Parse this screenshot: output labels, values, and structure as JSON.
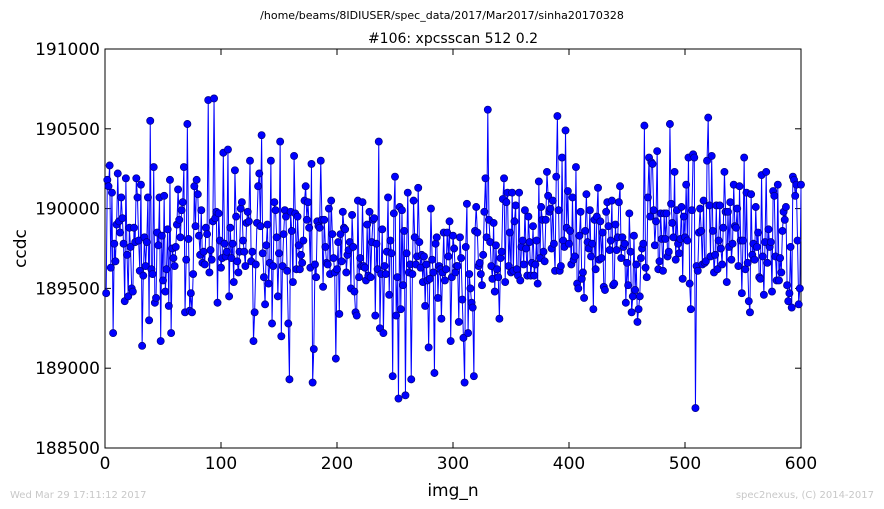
{
  "header": {
    "path": "/home/beams/8IDIUSER/spec_data/2017/Mar2017/sinha20170328",
    "title": "#106: xpcsscan 512 0.2"
  },
  "footer": {
    "left": "Wed Mar 29 17:11:12 2017",
    "right": "spec2nexus, (C) 2014-2017"
  },
  "chart_data": {
    "type": "line",
    "title": "#106: xpcsscan 512 0.2",
    "xlabel": "img_n",
    "ylabel": "ccdc",
    "xlim": [
      0,
      600
    ],
    "ylim": [
      188500,
      191000
    ],
    "xticks": [
      0,
      100,
      200,
      300,
      400,
      500,
      600
    ],
    "yticks": [
      188500,
      189000,
      189500,
      190000,
      190500,
      191000
    ],
    "grid": false,
    "marker": "circle",
    "colors": {
      "line": "#0000ff",
      "marker_fill": "#0000ff",
      "marker_edge": "#00007f"
    },
    "series": [
      {
        "name": "",
        "x_start": 1,
        "x_step": 1,
        "y": [
          189470,
          190180,
          190140,
          190270,
          189630,
          190100,
          189220,
          189780,
          189670,
          189900,
          190220,
          189920,
          189850,
          190070,
          189940,
          189780,
          189420,
          190190,
          189710,
          189450,
          189880,
          189760,
          189500,
          189480,
          189880,
          189790,
          190190,
          190070,
          189800,
          189610,
          190150,
          189140,
          189580,
          189820,
          189640,
          189790,
          190070,
          189300,
          190550,
          189620,
          189590,
          190260,
          189410,
          189440,
          189850,
          189770,
          190070,
          189170,
          189830,
          189550,
          190080,
          189480,
          189620,
          189870,
          189390,
          190180,
          189220,
          189750,
          189690,
          189640,
          189760,
          189900,
          190120,
          189930,
          189820,
          189990,
          190040,
          190260,
          189350,
          189680,
          190530,
          189810,
          189360,
          189470,
          189350,
          189590,
          190140,
          189890,
          190180,
          190090,
          189830,
          189710,
          189990,
          189660,
          189730,
          189650,
          189880,
          189840,
          190680,
          189600,
          189740,
          189680,
          189920,
          190690,
          189940,
          189980,
          189410,
          189970,
          189800,
          189630,
          189690,
          190350,
          189780,
          189700,
          189730,
          190370,
          189450,
          189880,
          189690,
          189780,
          189540,
          190240,
          189950,
          189670,
          189600,
          189730,
          190000,
          190040,
          189800,
          189730,
          189640,
          189910,
          189980,
          189920,
          190300,
          189670,
          189730,
          189170,
          189350,
          189650,
          189910,
          190140,
          190220,
          189890,
          190460,
          189720,
          189570,
          189400,
          189770,
          189900,
          189530,
          189660,
          190300,
          189280,
          189640,
          190040,
          189990,
          189820,
          189450,
          189720,
          190420,
          189200,
          189640,
          189840,
          189990,
          189950,
          189610,
          189280,
          188930,
          189980,
          189860,
          189540,
          190330,
          189970,
          189620,
          189950,
          189770,
          189620,
          189710,
          189660,
          189800,
          190050,
          190140,
          189930,
          190040,
          189880,
          189630,
          190280,
          188910,
          189120,
          189650,
          189570,
          189920,
          189890,
          189880,
          190300,
          189930,
          189510,
          189930,
          189760,
          189660,
          189650,
          190000,
          189590,
          190050,
          189840,
          189690,
          189600,
          189060,
          189620,
          189790,
          189340,
          189840,
          189670,
          189980,
          189880,
          189870,
          189600,
          189710,
          189740,
          189790,
          189500,
          189960,
          189760,
          189480,
          189350,
          189330,
          190050,
          189570,
          189690,
          189640,
          190040,
          189640,
          189630,
          189550,
          189900,
          189580,
          189980,
          189570,
          189790,
          189930,
          189940,
          189330,
          189780,
          189620,
          190420,
          189250,
          189590,
          189870,
          189220,
          189640,
          189590,
          189730,
          190070,
          189460,
          189800,
          189720,
          188950,
          189970,
          190200,
          189330,
          189570,
          188810,
          190010,
          189370,
          189990,
          189520,
          189860,
          188830,
          189720,
          190100,
          189600,
          189650,
          188930,
          189590,
          190050,
          189820,
          189650,
          189700,
          190130,
          189790,
          189630,
          189710,
          189540,
          189700,
          189390,
          189650,
          189550,
          189130,
          189560,
          190000,
          189680,
          189600,
          188970,
          189780,
          189820,
          189440,
          189640,
          189620,
          189310,
          189600,
          189850,
          189550,
          189620,
          189850,
          189700,
          189920,
          189170,
          189570,
          189830,
          189750,
          189600,
          189640,
          189640,
          189290,
          189820,
          189690,
          189430,
          189190,
          188910,
          189760,
          190030,
          189220,
          189590,
          189500,
          189410,
          189380,
          188950,
          189860,
          190010,
          189850,
          189640,
          189660,
          189590,
          189520,
          189710,
          189980,
          190190,
          189820,
          190620,
          189930,
          189790,
          189640,
          189560,
          189910,
          189480,
          189770,
          189620,
          189570,
          189310,
          189690,
          189730,
          190060,
          190190,
          189540,
          190040,
          190100,
          189640,
          189850,
          189600,
          190100,
          189610,
          189920,
          190020,
          189620,
          189580,
          190100,
          189550,
          189760,
          189800,
          189650,
          189990,
          189750,
          189580,
          189950,
          189790,
          189580,
          189660,
          189890,
          189580,
          189650,
          189800,
          189530,
          190170,
          189690,
          190010,
          189930,
          189730,
          189670,
          189930,
          190230,
          190080,
          189980,
          190000,
          189750,
          190050,
          189780,
          189610,
          190200,
          190580,
          189990,
          189610,
          189640,
          190320,
          189800,
          189760,
          190490,
          189880,
          190110,
          189780,
          189860,
          189650,
          190070,
          189680,
          189700,
          190260,
          189530,
          189500,
          189830,
          189980,
          189560,
          189600,
          189440,
          189860,
          190090,
          189790,
          189750,
          189990,
          189700,
          189780,
          189370,
          189930,
          189620,
          189950,
          190130,
          189680,
          189920,
          189690,
          189850,
          189510,
          189490,
          189980,
          190040,
          189890,
          189740,
          189800,
          190050,
          189520,
          189530,
          189900,
          189740,
          189820,
          190040,
          190140,
          189690,
          189820,
          189760,
          189780,
          189410,
          189660,
          189520,
          189970,
          189730,
          189350,
          189450,
          189830,
          189490,
          189650,
          189290,
          189370,
          189450,
          189690,
          189750,
          189780,
          190520,
          189630,
          189570,
          190070,
          190320,
          189950,
          190290,
          190280,
          189990,
          189770,
          189920,
          190360,
          189620,
          189670,
          189970,
          189810,
          189610,
          189970,
          189810,
          189970,
          189700,
          189730,
          190530,
          190030,
          189910,
          189820,
          190230,
          189680,
          189990,
          189780,
          189720,
          189810,
          190010,
          189560,
          189950,
          189820,
          190150,
          189800,
          190320,
          189530,
          189370,
          189990,
          190340,
          190320,
          188750,
          189640,
          189610,
          189850,
          190000,
          189860,
          189650,
          190050,
          189660,
          189670,
          190300,
          190570,
          190020,
          189700,
          190330,
          189860,
          189600,
          189710,
          190020,
          189620,
          189800,
          190020,
          189750,
          189650,
          189880,
          190230,
          189980,
          189540,
          189980,
          189760,
          190040,
          189680,
          189780,
          190150,
          189890,
          189880,
          190000,
          189640,
          190140,
          189800,
          189470,
          189800,
          190320,
          189620,
          190100,
          189660,
          189420,
          189350,
          190090,
          189710,
          189780,
          189680,
          190010,
          189760,
          189850,
          189570,
          189560,
          190210,
          189700,
          189460,
          189790,
          190230,
          189660,
          189870,
          189760,
          189790,
          189480,
          190110,
          190080,
          189700,
          189550,
          190150,
          189550,
          189690,
          189600,
          189860,
          189980,
          189930,
          190010,
          189520,
          189420,
          189470,
          189760,
          189380,
          190200,
          190180,
          190080,
          190150,
          189800,
          189400,
          189500,
          190150
        ]
      }
    ]
  }
}
